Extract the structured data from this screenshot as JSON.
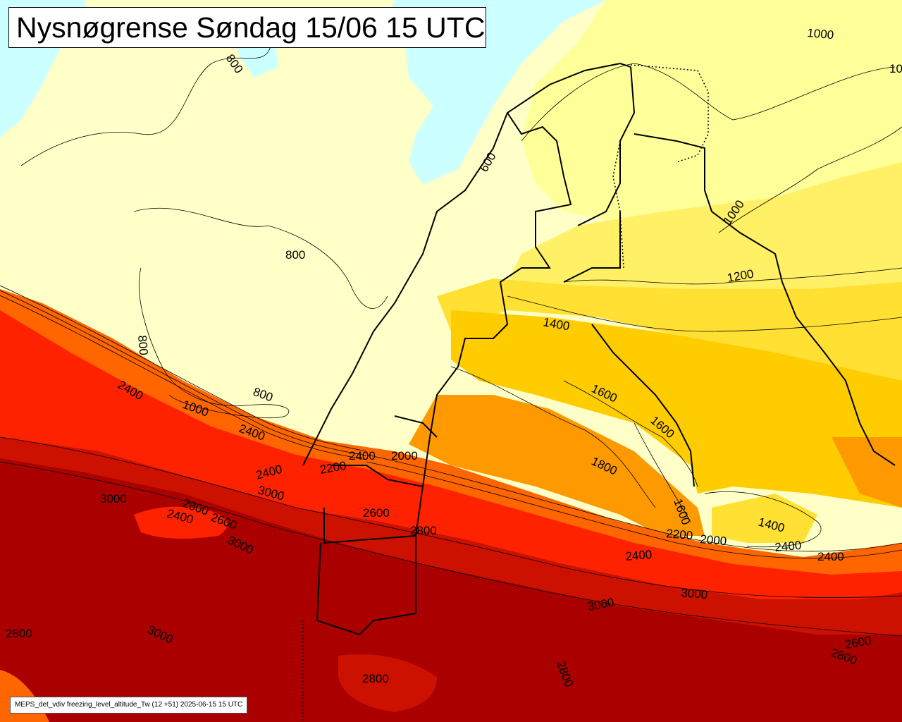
{
  "title": "Nysnøgrense Søndag 15/06 15 UTC",
  "footer": "MEPS_det_vdiv freezing_level_altitude_Tw (12 +51) 2025-06-15 15 UTC",
  "colors": {
    "sea_cyan": "#ccffff",
    "zone_lt800": "#ffffc8",
    "zone_1000": "#ffff9a",
    "zone_1200": "#fff066",
    "zone_1400": "#ffe033",
    "zone_1600": "#ffcc00",
    "zone_1800": "#ff9900",
    "zone_2200": "#ff6600",
    "zone_2400": "#ff2200",
    "zone_2800": "#cc1100",
    "zone_3000": "#aa0000"
  },
  "contour_labels": [
    {
      "text": "1000"
    },
    {
      "text": "10"
    },
    {
      "text": "800"
    },
    {
      "text": "800"
    },
    {
      "text": "800"
    },
    {
      "text": "800"
    },
    {
      "text": "600"
    },
    {
      "text": "1000"
    },
    {
      "text": "1200"
    },
    {
      "text": "1400"
    },
    {
      "text": "1600"
    },
    {
      "text": "1600"
    },
    {
      "text": "1800"
    },
    {
      "text": "1600"
    },
    {
      "text": "1400"
    },
    {
      "text": "2400"
    },
    {
      "text": "1000"
    },
    {
      "text": "2400"
    },
    {
      "text": "2200"
    },
    {
      "text": "2400"
    },
    {
      "text": "2000"
    },
    {
      "text": "2400"
    },
    {
      "text": "3000"
    },
    {
      "text": "3000"
    },
    {
      "text": "2800"
    },
    {
      "text": "2400"
    },
    {
      "text": "2600"
    },
    {
      "text": "3000"
    },
    {
      "text": "2600"
    },
    {
      "text": "2800"
    },
    {
      "text": "2200"
    },
    {
      "text": "2000"
    },
    {
      "text": "2400"
    },
    {
      "text": "2400"
    },
    {
      "text": "2400"
    },
    {
      "text": "3000"
    },
    {
      "text": "3000"
    },
    {
      "text": "2800"
    },
    {
      "text": "3000"
    },
    {
      "text": "2800"
    },
    {
      "text": "2800"
    },
    {
      "text": "2800"
    },
    {
      "text": "2600"
    }
  ]
}
